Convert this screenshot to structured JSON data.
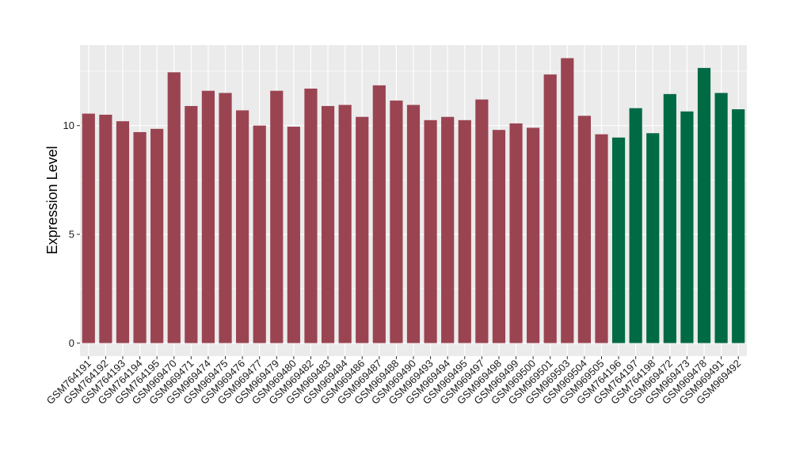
{
  "chart_data": {
    "type": "bar",
    "title": "",
    "xlabel": "",
    "ylabel": "Expression Level",
    "ylim": [
      -0.6,
      13.7
    ],
    "yticks": [
      0,
      5,
      10
    ],
    "grid": true,
    "legend": "none",
    "colors": {
      "group1": "#9a4452",
      "group2": "#006a44",
      "panel": "#ebebeb",
      "gridline": "#ffffff"
    },
    "categories": [
      "GSM764191",
      "GSM764192",
      "GSM764193",
      "GSM764194",
      "GSM764195",
      "GSM969470",
      "GSM969471",
      "GSM969474",
      "GSM969475",
      "GSM969476",
      "GSM969477",
      "GSM969479",
      "GSM969480",
      "GSM969482",
      "GSM969483",
      "GSM969484",
      "GSM969486",
      "GSM969487",
      "GSM969488",
      "GSM969490",
      "GSM969493",
      "GSM969494",
      "GSM969495",
      "GSM969497",
      "GSM969498",
      "GSM969499",
      "GSM969500",
      "GSM969501",
      "GSM969503",
      "GSM969504",
      "GSM969505",
      "GSM764196",
      "GSM764197",
      "GSM764198",
      "GSM969472",
      "GSM969473",
      "GSM969478",
      "GSM969491",
      "GSM969492"
    ],
    "values": [
      10.55,
      10.5,
      10.2,
      9.7,
      9.85,
      12.45,
      10.9,
      11.6,
      11.5,
      10.7,
      10.0,
      11.6,
      9.95,
      11.7,
      10.9,
      10.95,
      10.4,
      11.85,
      11.15,
      10.95,
      10.25,
      10.4,
      10.25,
      11.2,
      9.8,
      10.1,
      9.9,
      12.35,
      13.1,
      10.45,
      9.6,
      9.45,
      10.8,
      9.65,
      11.45,
      10.65,
      12.65,
      11.5,
      10.75
    ],
    "groups": [
      1,
      1,
      1,
      1,
      1,
      1,
      1,
      1,
      1,
      1,
      1,
      1,
      1,
      1,
      1,
      1,
      1,
      1,
      1,
      1,
      1,
      1,
      1,
      1,
      1,
      1,
      1,
      1,
      1,
      1,
      1,
      2,
      2,
      2,
      2,
      2,
      2,
      2,
      2
    ]
  }
}
